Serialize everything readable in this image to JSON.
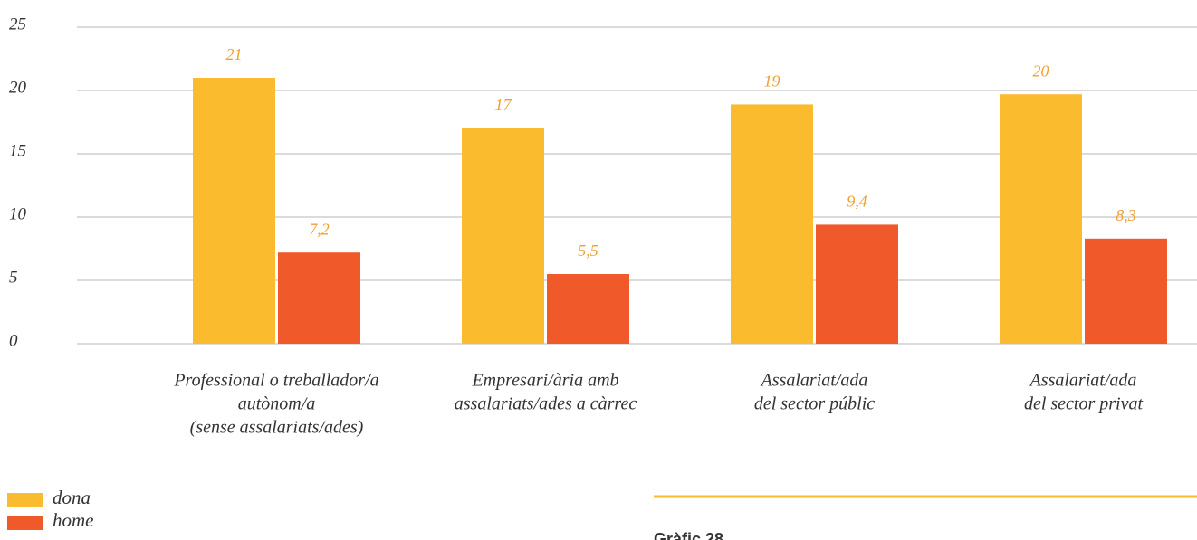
{
  "chart_data": {
    "type": "bar",
    "categories": [
      [
        "Professional o treballador/a",
        "autònom/a",
        "(sense assalariats/ades)"
      ],
      [
        "Empresari/ària amb",
        "assalariats/ades a càrrec"
      ],
      [
        "Assalariat/ada",
        "del sector públic"
      ],
      [
        "Assalariat/ada",
        "del sector privat"
      ]
    ],
    "series": [
      {
        "name": "dona",
        "color": "#fbbb2e",
        "values": [
          21,
          17,
          18.9,
          19.7
        ],
        "value_labels": [
          "21",
          "17",
          "19",
          "20"
        ]
      },
      {
        "name": "home",
        "color": "#f05a2b",
        "values": [
          7.2,
          5.5,
          9.4,
          8.3
        ],
        "value_labels": [
          "7,2",
          "5,5",
          "9,4",
          "8,3"
        ]
      }
    ],
    "ylim": [
      0,
      25
    ],
    "yticks": [
      0,
      5,
      10,
      15,
      20,
      25
    ],
    "grid": true,
    "legend": "bottom-left",
    "caption": "Gràfic 28"
  }
}
